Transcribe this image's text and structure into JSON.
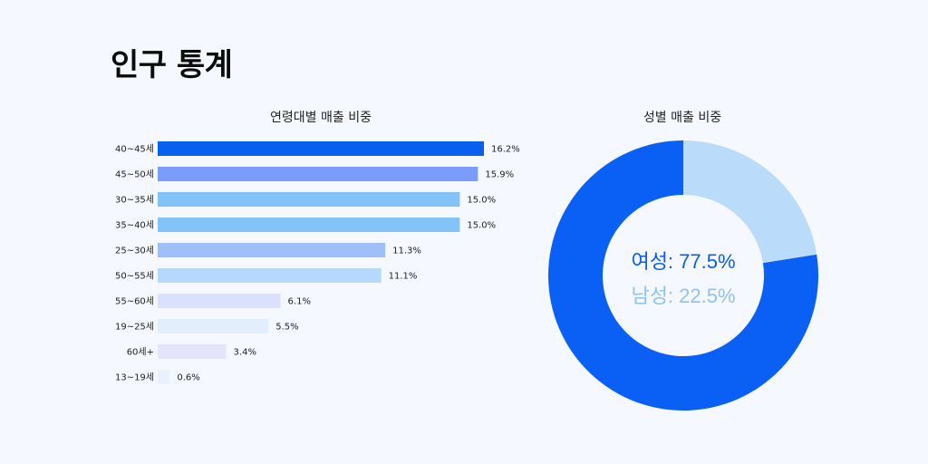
{
  "page": {
    "title": "인구 통계"
  },
  "chart_data": [
    {
      "type": "bar",
      "orientation": "horizontal",
      "title": "연령대별 매출 비중",
      "categories": [
        "40~45세",
        "45~50세",
        "30~35세",
        "35~40세",
        "25~30세",
        "50~55세",
        "55~60세",
        "19~25세",
        "60세+",
        "13~19세"
      ],
      "values": [
        16.2,
        15.9,
        15.0,
        15.0,
        11.3,
        11.1,
        6.1,
        5.5,
        3.4,
        0.6
      ],
      "value_labels": [
        "16.2%",
        "15.9%",
        "15.0%",
        "15.0%",
        "11.3%",
        "11.1%",
        "6.1%",
        "5.5%",
        "3.4%",
        "0.6%"
      ],
      "unit": "%",
      "xlim": [
        0,
        16.2
      ],
      "colors": [
        "#0a60ee",
        "#7a9cfb",
        "#84c3f9",
        "#84c3f9",
        "#9fbefb",
        "#b6d8fb",
        "#dbe1fc",
        "#e2eefc",
        "#e4e5fb",
        "#e8f1fd"
      ],
      "grid": false
    },
    {
      "type": "pie",
      "donut": true,
      "title": "성별 매출 비중",
      "categories": [
        "여성",
        "남성"
      ],
      "values": [
        77.5,
        22.5
      ],
      "labels": [
        "여성: 77.5%",
        "남성: 22.5%"
      ],
      "colors": [
        "#0a60f5",
        "#bbdbfb"
      ]
    }
  ]
}
